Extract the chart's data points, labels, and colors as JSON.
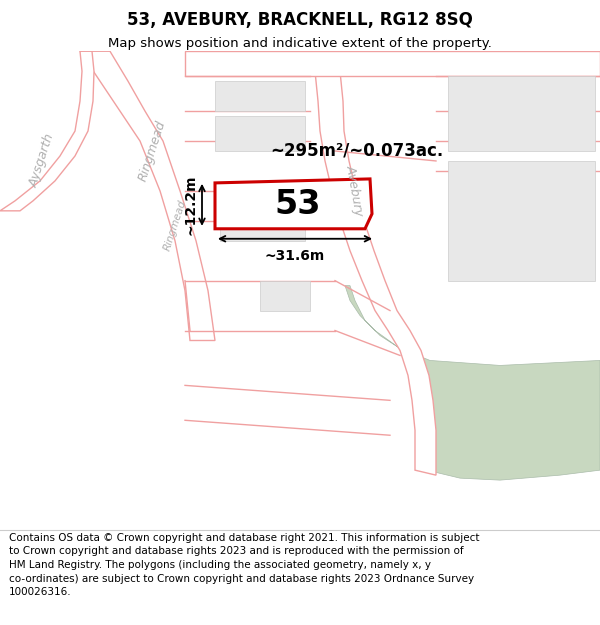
{
  "title": "53, AVEBURY, BRACKNELL, RG12 8SQ",
  "subtitle": "Map shows position and indicative extent of the property.",
  "footer": "Contains OS data © Crown copyright and database right 2021. This information is subject\nto Crown copyright and database rights 2023 and is reproduced with the permission of\nHM Land Registry. The polygons (including the associated geometry, namely x, y\nco-ordinates) are subject to Crown copyright and database rights 2023 Ordnance Survey\n100026316.",
  "map_bg": "#ffffff",
  "road_line_color": "#f0a0a0",
  "road_lw": 1.0,
  "building_fill": "#e8e8e8",
  "building_edge": "#cccccc",
  "green_fill": "#c8d8c0",
  "green_edge": "#aabcaa",
  "prop_fill": "#ffffff",
  "prop_edge": "#cc0000",
  "prop_lw": 2.2,
  "property_number": "53",
  "area_label": "~295m²/~0.073ac.",
  "width_label": "~31.6m",
  "height_label": "~12.2m",
  "street_label_color": "#b0b0b0",
  "dim_color": "#000000",
  "title_fontsize": 12,
  "subtitle_fontsize": 9.5,
  "footer_fontsize": 7.5,
  "prop_num_fontsize": 24,
  "area_fontsize": 12,
  "dim_fontsize": 10,
  "street_fontsize": 9
}
